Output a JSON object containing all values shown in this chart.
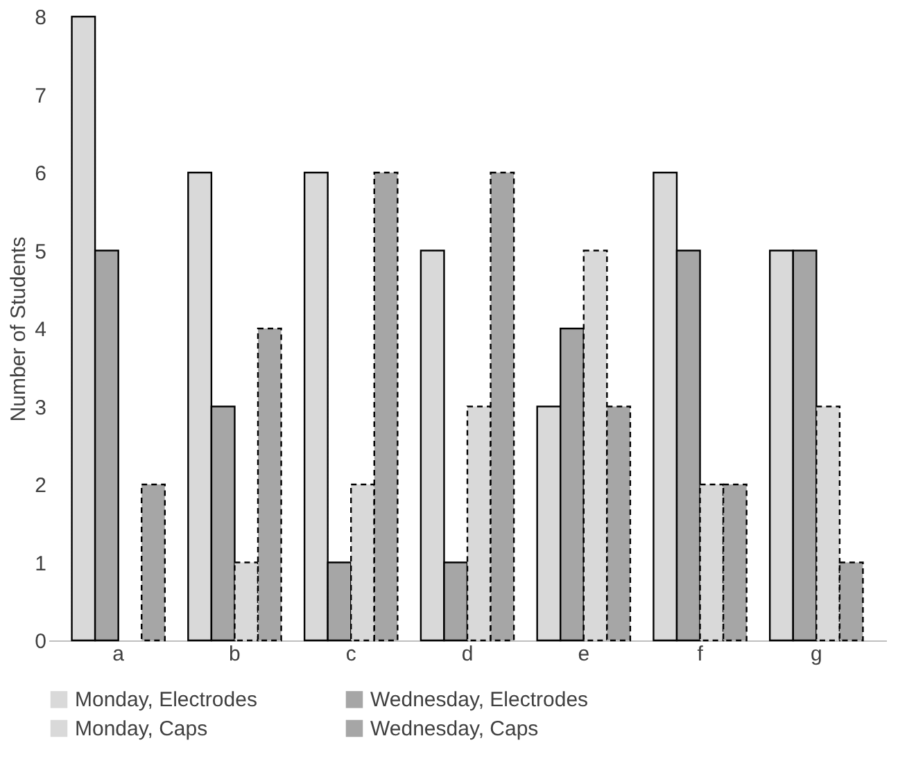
{
  "chart_data": {
    "type": "bar",
    "ylabel": "Number of Students",
    "categories": [
      "a",
      "b",
      "c",
      "d",
      "e",
      "f",
      "g"
    ],
    "series": [
      {
        "name": "Monday, Electrodes",
        "color": "#d9d9d9",
        "line_style": "solid",
        "values": [
          8,
          6,
          6,
          5,
          3,
          6,
          5
        ]
      },
      {
        "name": "Wednesday, Electrodes",
        "color": "#a6a6a6",
        "line_style": "solid",
        "values": [
          5,
          3,
          1,
          1,
          4,
          5,
          5
        ]
      },
      {
        "name": "Monday, Caps",
        "color": "#d9d9d9",
        "line_style": "dashed",
        "values": [
          0,
          1,
          2,
          3,
          5,
          2,
          3
        ]
      },
      {
        "name": "Wednesday, Caps",
        "color": "#a6a6a6",
        "line_style": "dashed",
        "values": [
          2,
          4,
          6,
          6,
          3,
          2,
          1
        ]
      }
    ],
    "ylim": [
      0,
      8
    ],
    "yticks": [
      0,
      1,
      2,
      3,
      4,
      5,
      6,
      7,
      8
    ],
    "grid": false,
    "legend": "bottom"
  }
}
